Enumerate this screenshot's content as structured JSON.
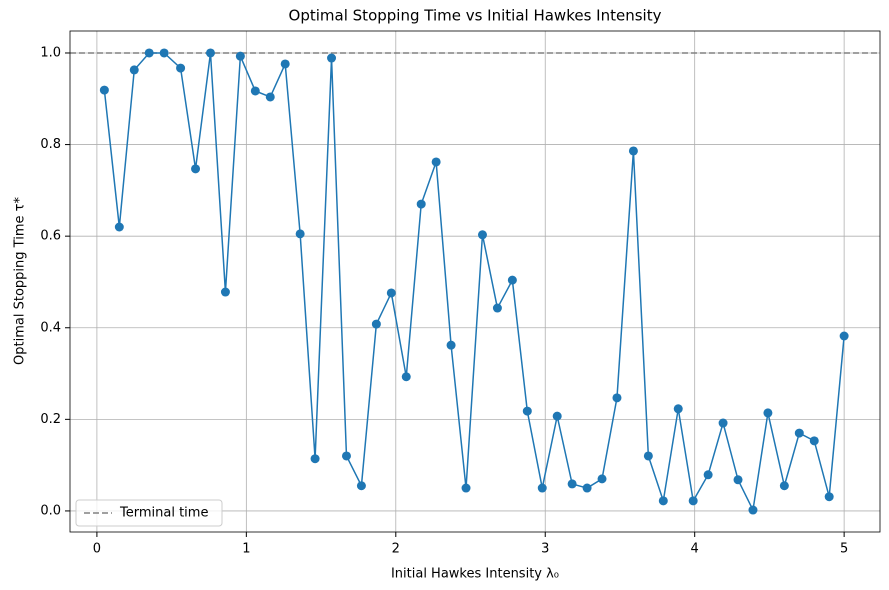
{
  "chart_data": {
    "type": "line",
    "title": "Optimal Stopping Time vs Initial Hawkes Intensity",
    "xlabel": "Initial Hawkes Intensity λ₀",
    "ylabel": "Optimal Stopping Time τ*",
    "x": [
      0.05,
      0.15,
      0.25,
      0.35,
      0.45,
      0.56,
      0.66,
      0.76,
      0.86,
      0.96,
      1.06,
      1.16,
      1.26,
      1.36,
      1.46,
      1.57,
      1.67,
      1.77,
      1.87,
      1.97,
      2.07,
      2.17,
      2.27,
      2.37,
      2.47,
      2.58,
      2.68,
      2.78,
      2.88,
      2.98,
      3.08,
      3.18,
      3.28,
      3.38,
      3.48,
      3.59,
      3.69,
      3.79,
      3.89,
      3.99,
      4.09,
      4.19,
      4.29,
      4.39,
      4.49,
      4.6,
      4.7,
      4.8,
      4.9,
      5.0
    ],
    "series": [
      {
        "name": null,
        "color": "#1f77b4",
        "marker": "o",
        "values": [
          0.919,
          0.62,
          0.963,
          1.0,
          1.0,
          0.967,
          0.747,
          1.0,
          0.478,
          0.993,
          0.917,
          0.904,
          0.976,
          0.605,
          0.114,
          0.989,
          0.12,
          0.055,
          0.408,
          0.476,
          0.293,
          0.67,
          0.762,
          0.362,
          0.05,
          0.603,
          0.443,
          0.504,
          0.218,
          0.05,
          0.207,
          0.059,
          0.05,
          0.07,
          0.247,
          0.786,
          0.12,
          0.022,
          0.223,
          0.022,
          0.079,
          0.192,
          0.068,
          0.002,
          0.214,
          0.055,
          0.17,
          0.153,
          0.031,
          0.382
        ]
      }
    ],
    "hlines": [
      {
        "value": 1,
        "name": "Terminal time",
        "color": "#808080",
        "style": "dashed"
      }
    ],
    "xlim": [
      -0.18,
      5.24
    ],
    "ylim": [
      -0.046,
      1.048
    ],
    "xticks": [
      0,
      1,
      2,
      3,
      4,
      5
    ],
    "yticks": [
      {
        "value": 0,
        "label": "0.0"
      },
      0.2,
      0.4,
      0.6,
      0.8,
      {
        "value": 1,
        "label": "1.0"
      }
    ],
    "grid": true,
    "legend": "lower left"
  }
}
